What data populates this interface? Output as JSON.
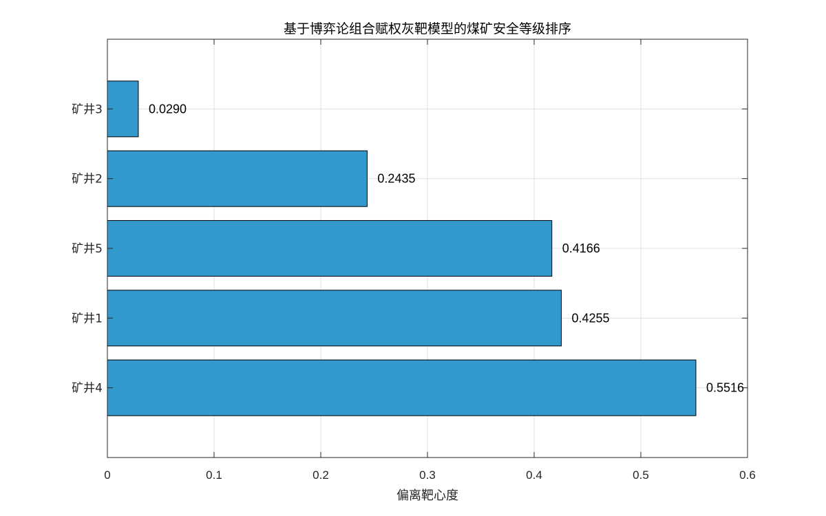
{
  "chart_data": {
    "type": "bar",
    "orientation": "horizontal",
    "title": "基于博弈论组合赋权灰靶模型的煤矿安全等级排序",
    "xlabel": "偏离靶心度",
    "ylabel": "",
    "categories": [
      "矿井4",
      "矿井1",
      "矿井5",
      "矿井2",
      "矿井3"
    ],
    "values": [
      0.5516,
      0.4255,
      0.4166,
      0.2435,
      0.029
    ],
    "value_labels": [
      "0.5516",
      "0.4255",
      "0.4166",
      "0.2435",
      "0.0290"
    ],
    "xlim": [
      0,
      0.6
    ],
    "xticks": [
      0,
      0.1,
      0.2,
      0.3,
      0.4,
      0.5,
      0.6
    ],
    "xtick_labels": [
      "0",
      "0.1",
      "0.2",
      "0.3",
      "0.4",
      "0.5",
      "0.6"
    ],
    "grid": true,
    "legend": "none",
    "bar_color": "#3399cc",
    "bar_edge_color": "#000000"
  }
}
